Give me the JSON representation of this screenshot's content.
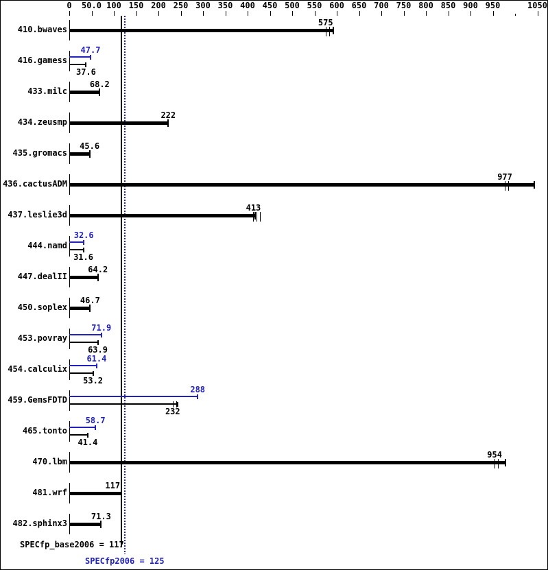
{
  "colors": {
    "base": "#000000",
    "peak": "#2222bb",
    "background": "#ffffff",
    "border": "#000000"
  },
  "chart_data": {
    "type": "bar",
    "orientation": "horizontal",
    "xlim": [
      0,
      1050
    ],
    "grid": false,
    "x_axis": {
      "ticks": [
        {
          "value": 0,
          "label": "0"
        },
        {
          "value": 50,
          "label": "50.0"
        },
        {
          "value": 100,
          "label": "100"
        },
        {
          "value": 150,
          "label": "150"
        },
        {
          "value": 200,
          "label": "200"
        },
        {
          "value": 250,
          "label": "250"
        },
        {
          "value": 300,
          "label": "300"
        },
        {
          "value": 350,
          "label": "350"
        },
        {
          "value": 400,
          "label": "400"
        },
        {
          "value": 450,
          "label": "450"
        },
        {
          "value": 500,
          "label": "500"
        },
        {
          "value": 550,
          "label": "550"
        },
        {
          "value": 600,
          "label": "600"
        },
        {
          "value": 650,
          "label": "650"
        },
        {
          "value": 700,
          "label": "700"
        },
        {
          "value": 750,
          "label": "750"
        },
        {
          "value": 800,
          "label": "800"
        },
        {
          "value": 850,
          "label": "850"
        },
        {
          "value": 900,
          "label": "900"
        },
        {
          "value": 950,
          "label": "950"
        },
        {
          "value": 1000,
          "label": ""
        },
        {
          "value": 1050,
          "label": "1050"
        }
      ]
    },
    "series": [
      {
        "name": "base",
        "color_role": "base"
      },
      {
        "name": "peak",
        "color_role": "peak"
      }
    ],
    "reference_lines": [
      {
        "name": "SPECfp_base2006",
        "value": 117,
        "style": "solid",
        "color_role": "base"
      },
      {
        "name": "SPECfp2006",
        "value": 125,
        "style": "dotted",
        "color_role": "peak"
      }
    ],
    "benchmarks": [
      {
        "name": "410.bwaves",
        "base": 575,
        "base_label": "575",
        "base_bar_end": 592,
        "base_marks": 2
      },
      {
        "name": "416.gamess",
        "base": 37.6,
        "base_label": "37.6",
        "peak": 47.7,
        "peak_label": "47.7"
      },
      {
        "name": "433.milc",
        "base": 68.2,
        "base_label": "68.2"
      },
      {
        "name": "434.zeusmp",
        "base": 222,
        "base_label": "222"
      },
      {
        "name": "435.gromacs",
        "base": 45.6,
        "base_label": "45.6"
      },
      {
        "name": "436.cactusADM",
        "base": 977,
        "base_label": "977",
        "base_bar_end": 1043,
        "base_marks": 2
      },
      {
        "name": "437.leslie3d",
        "base": 413,
        "base_label": "413",
        "base_bar_end": 417,
        "base_marks": 3
      },
      {
        "name": "444.namd",
        "base": 31.6,
        "base_label": "31.6",
        "peak": 32.6,
        "peak_label": "32.6"
      },
      {
        "name": "447.dealII",
        "base": 64.2,
        "base_label": "64.2"
      },
      {
        "name": "450.soplex",
        "base": 46.7,
        "base_label": "46.7"
      },
      {
        "name": "453.povray",
        "base": 63.9,
        "base_label": "63.9",
        "peak": 71.9,
        "peak_label": "71.9"
      },
      {
        "name": "454.calculix",
        "base": 53.2,
        "base_label": "53.2",
        "peak": 61.4,
        "peak_label": "61.4"
      },
      {
        "name": "459.GemsFDTD",
        "base": 232,
        "base_label": "232",
        "base_bar_end": 243,
        "base_marks": 2,
        "peak": 288,
        "peak_label": "288"
      },
      {
        "name": "465.tonto",
        "base": 41.4,
        "base_label": "41.4",
        "peak": 58.7,
        "peak_label": "58.7"
      },
      {
        "name": "470.lbm",
        "base": 954,
        "base_label": "954",
        "base_bar_end": 978,
        "base_marks": 2
      },
      {
        "name": "481.wrf",
        "base": 117,
        "base_label": "117"
      },
      {
        "name": "482.sphinx3",
        "base": 71.3,
        "base_label": "71.3"
      }
    ],
    "footer": {
      "base_label": "SPECfp_base2006 = 117",
      "peak_label": "SPECfp2006 = 125"
    }
  }
}
